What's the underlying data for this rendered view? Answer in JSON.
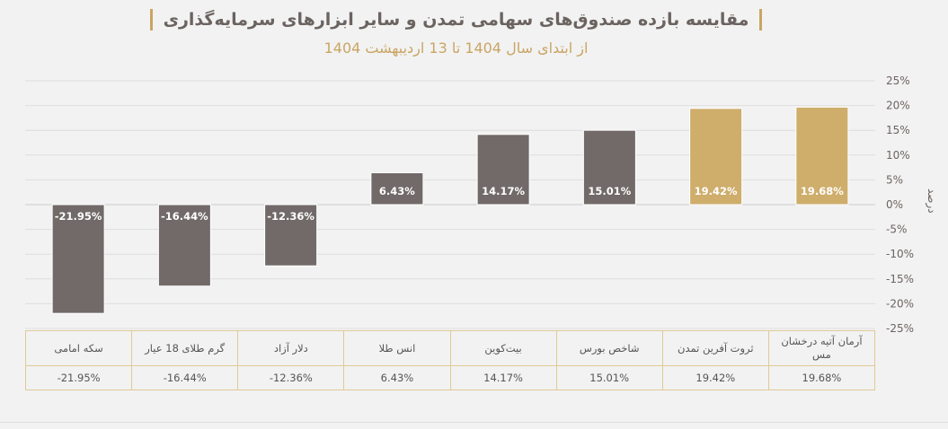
{
  "title": "مقایسه بازده صندوق‌های سهامی تمدن و سایر ابزارهای سرمایه‌گذاری",
  "subtitle": "از ابتدای سال 1404 تا 13 اردیبهشت 1404",
  "unit_label": "درصد",
  "colors": {
    "dark_bar": "#716a68",
    "gold_bar": "#cfad6b",
    "bar_label": "#ffffff",
    "grid": "#dddddd",
    "accent": "#c9a564"
  },
  "chart_data": {
    "type": "bar",
    "title": "مقایسه بازده صندوق‌های سهامی تمدن و سایر ابزارهای سرمایه‌گذاری",
    "subtitle": "از ابتدای سال 1404 تا 13 اردیبهشت 1404",
    "ylabel": "درصد",
    "ylim": [
      -25,
      25
    ],
    "yticks": [
      "25%",
      "20%",
      "15%",
      "10%",
      "5%",
      "0%",
      "-5%",
      "-10%",
      "-15%",
      "-20%",
      "-25%"
    ],
    "grid": true,
    "categories": [
      "سکه امامی",
      "گرم طلای 18 عیار",
      "دلار آزاد",
      "انس طلا",
      "بیت‌کوین",
      "شاخص بورس",
      "ثروت آفرین تمدن",
      "آرمان آتیه درخشان مس"
    ],
    "values": [
      -21.95,
      -16.44,
      -12.36,
      6.43,
      14.17,
      15.01,
      19.42,
      19.68
    ],
    "value_labels": [
      "-21.95%",
      "-16.44%",
      "-12.36%",
      "6.43%",
      "14.17%",
      "15.01%",
      "19.42%",
      "19.68%"
    ],
    "highlight": [
      false,
      false,
      false,
      false,
      false,
      false,
      true,
      true
    ]
  }
}
